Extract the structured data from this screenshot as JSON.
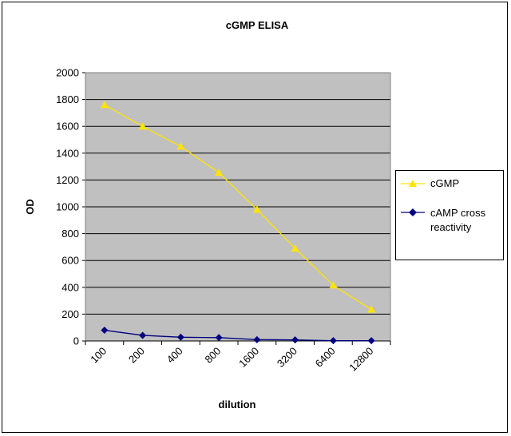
{
  "chart_data": {
    "type": "line",
    "title": "cGMP ELISA",
    "xlabel": "dilution",
    "ylabel": "OD",
    "categories": [
      "100",
      "200",
      "400",
      "800",
      "1600",
      "3200",
      "6400",
      "12800"
    ],
    "ylim": [
      0,
      2000
    ],
    "yticks": [
      "0",
      "200",
      "400",
      "600",
      "800",
      "1000",
      "1200",
      "1400",
      "1600",
      "1800",
      "2000"
    ],
    "grid": true,
    "legend_position": "right",
    "series": [
      {
        "name": "cGMP",
        "color": "#FFE400",
        "marker": "triangle",
        "values": [
          1760,
          1600,
          1450,
          1255,
          980,
          690,
          415,
          235
        ]
      },
      {
        "name": "cAMP cross reactivity",
        "color": "#000080",
        "marker": "diamond",
        "values": [
          80,
          42,
          28,
          25,
          10,
          8,
          2,
          2
        ]
      }
    ]
  },
  "colors": {
    "plot_background": "#C0C0C0",
    "gridline": "#000000"
  }
}
